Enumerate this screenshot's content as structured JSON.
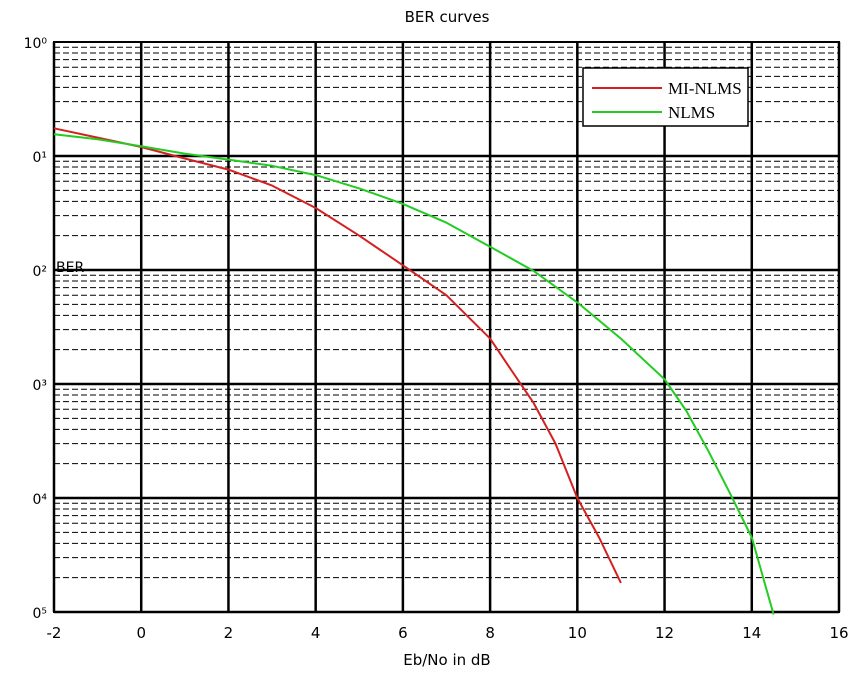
{
  "chart_data": {
    "type": "line",
    "title": "BER curves",
    "xlabel": "Eb/No in dB",
    "ylabel": "BER",
    "xlim": [
      -2,
      16
    ],
    "ylim": [
      1e-05,
      1
    ],
    "yscale": "log",
    "grid": true,
    "legend_position": "top-right",
    "x_ticks": [
      -2,
      0,
      2,
      4,
      6,
      8,
      10,
      12,
      14,
      16
    ],
    "x_tick_labels": [
      "-2",
      "0",
      "2",
      "4",
      "6",
      "8",
      "10",
      "12",
      "14",
      "16"
    ],
    "y_ticks": [
      1,
      0.1,
      0.01,
      0.001,
      0.0001,
      1e-05
    ],
    "y_tick_labels": [
      "10⁰",
      "0¹",
      "0²",
      "0³",
      "0⁴",
      "0⁵"
    ],
    "series": [
      {
        "name": "MI-NLMS",
        "color": "#d42020",
        "x": [
          -2,
          -1,
          0,
          1,
          2,
          3,
          4,
          5,
          6,
          7,
          8,
          8.5,
          9,
          9.5,
          10,
          10.5,
          11
        ],
        "y": [
          0.175,
          0.145,
          0.12,
          0.095,
          0.076,
          0.055,
          0.035,
          0.02,
          0.011,
          0.006,
          0.0025,
          0.0013,
          0.00068,
          0.0003,
          0.0001,
          4.5e-05,
          1.8e-05
        ]
      },
      {
        "name": "NLMS",
        "color": "#22cc22",
        "x": [
          -2,
          -1,
          0,
          1,
          2,
          3,
          4,
          5,
          6,
          7,
          8,
          9,
          10,
          11,
          12,
          12.5,
          13,
          13.5,
          14,
          14.5
        ],
        "y": [
          0.155,
          0.14,
          0.122,
          0.105,
          0.093,
          0.082,
          0.068,
          0.052,
          0.038,
          0.026,
          0.016,
          0.0098,
          0.0052,
          0.0025,
          0.0011,
          0.00058,
          0.00026,
          0.00011,
          4.5e-05,
          9.5e-06
        ]
      }
    ]
  }
}
